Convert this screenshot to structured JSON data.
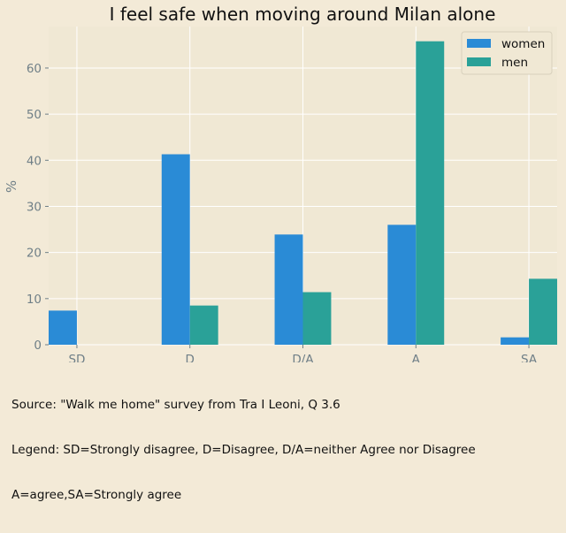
{
  "chart_data": {
    "type": "bar",
    "title": "I feel safe when moving around Milan alone",
    "xlabel": "",
    "ylabel": "%",
    "categories": [
      "SD",
      "D",
      "D/A",
      "A",
      "SA"
    ],
    "series": [
      {
        "name": "women",
        "values": [
          7.4,
          41.3,
          23.9,
          26.0,
          1.6
        ]
      },
      {
        "name": "men",
        "values": [
          0,
          8.5,
          11.4,
          65.8,
          14.3
        ]
      }
    ],
    "ylim": [
      0,
      69
    ],
    "yticks": [
      0,
      10,
      20,
      30,
      40,
      50,
      60
    ],
    "grid": true,
    "legend_position": "top-right"
  },
  "colors": {
    "women": "#2a8bd6",
    "men": "#2aa198",
    "background": "#f3ead7",
    "plot_background": "#f0e8d4",
    "grid": "#ffffff",
    "tick_text": "#6f7f87"
  },
  "caption": {
    "line1": "Source: \"Walk me home\" survey from Tra I Leoni, Q 3.6",
    "line2": "Legend: SD=Strongly disagree, D=Disagree, D/A=neither Agree nor Disagree",
    "line3": "A=agree,SA=Strongly agree"
  }
}
